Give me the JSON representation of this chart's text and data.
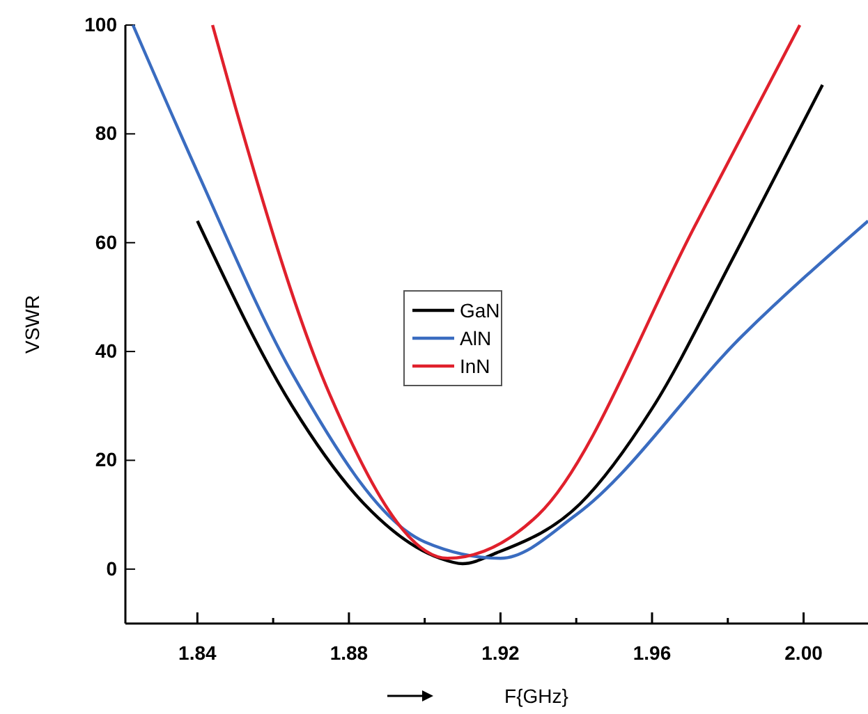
{
  "chart_data": {
    "type": "line",
    "xlabel": "F{GHz}",
    "ylabel": "VSWR",
    "xlim": [
      1.821,
      2.017
    ],
    "ylim": [
      -10,
      100
    ],
    "xticks": [
      1.84,
      {
        "value": 1.86,
        "label": null
      },
      1.88,
      {
        "value": 1.9,
        "label": null
      },
      1.92,
      {
        "value": 1.94,
        "label": null
      },
      1.96,
      {
        "value": 1.98,
        "label": null
      },
      {
        "value": 2.0,
        "label": "2.00"
      }
    ],
    "yticks": [
      0,
      20,
      40,
      60,
      80,
      100
    ],
    "grid": false,
    "legend": "center",
    "marker": "none",
    "line_style": "solid",
    "series": [
      {
        "name": "GaN",
        "color": "#000000",
        "x": [
          1.84,
          1.865,
          1.884,
          1.904,
          1.91,
          1.919,
          1.941,
          1.96,
          1.982,
          2.005
        ],
        "values": [
          64,
          30,
          12,
          2,
          1,
          3,
          12,
          29.5,
          58,
          89
        ]
      },
      {
        "name": "AlN",
        "color": "#3a6cc0",
        "x": [
          1.823,
          1.84,
          1.865,
          1.9,
          1.92,
          1.94,
          1.984,
          2.017
        ],
        "values": [
          100,
          73,
          36,
          5,
          2,
          10,
          43,
          64
        ]
      },
      {
        "name": "InN",
        "color": "#e0202c",
        "x": [
          1.844,
          1.85,
          1.875,
          1.906,
          1.93,
          1.972,
          1.999
        ],
        "values": [
          100,
          85,
          32,
          2,
          10,
          64,
          100
        ]
      }
    ]
  }
}
